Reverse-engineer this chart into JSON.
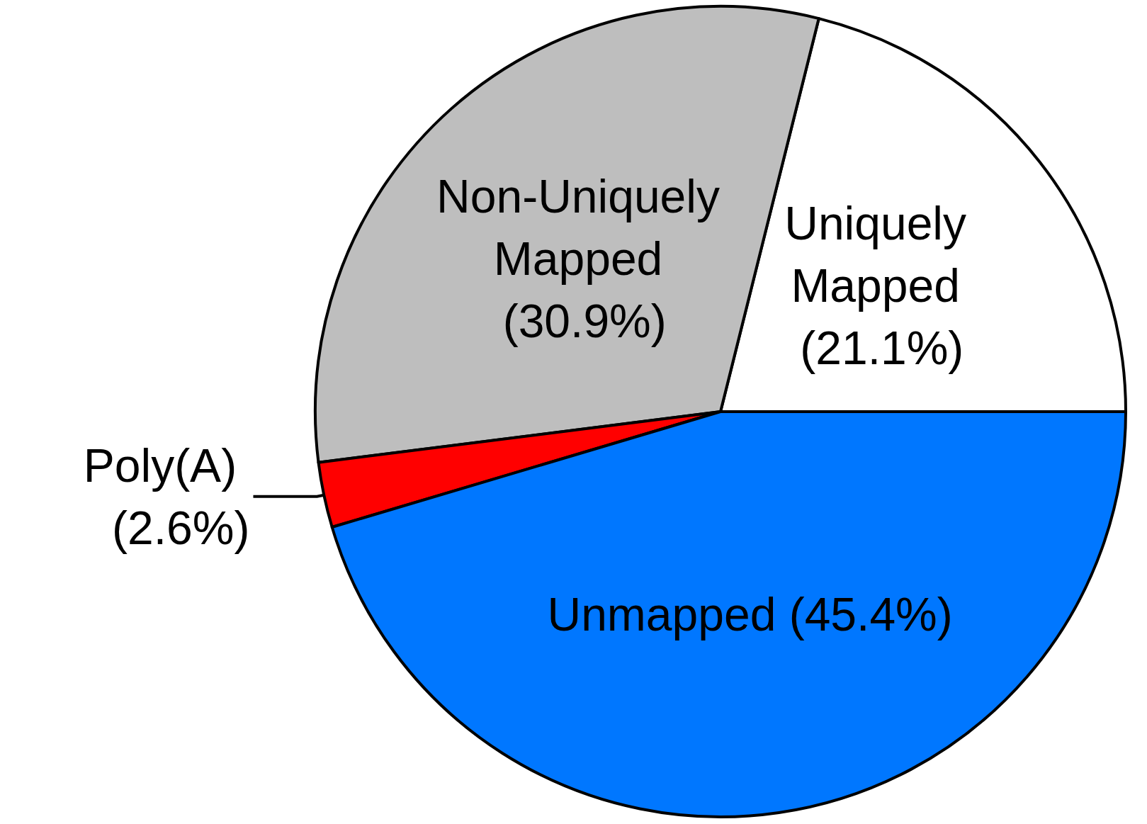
{
  "chart_data": {
    "type": "pie",
    "categories": [
      "Uniquely Mapped",
      "Non-Uniquely Mapped",
      "Poly(A)",
      "Unmapped"
    ],
    "values": [
      21.1,
      30.9,
      2.6,
      45.4
    ],
    "value_labels": [
      "(21.1%)",
      "(30.9%)",
      "(2.6%)",
      "(45.4%)"
    ],
    "colors": [
      "#ffffff",
      "#bebebe",
      "#ff0000",
      "#0077ff"
    ],
    "legend": false
  }
}
